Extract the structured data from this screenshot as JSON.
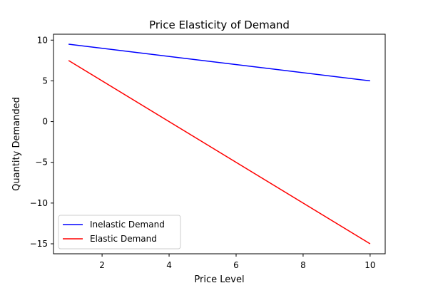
{
  "chart_data": {
    "type": "line",
    "title": "Price Elasticity of Demand",
    "xlabel": "Price Level",
    "ylabel": "Quantity Demanded",
    "xlim": [
      0.55,
      10.45
    ],
    "ylim": [
      -16.225,
      10.725
    ],
    "xticks": [
      2,
      4,
      6,
      8,
      10
    ],
    "xtick_labels": [
      "2",
      "4",
      "6",
      "8",
      "10"
    ],
    "yticks": [
      10,
      5,
      0,
      -5,
      -10,
      -15
    ],
    "ytick_labels": [
      "10",
      "5",
      "0",
      "−5",
      "−10",
      "−15"
    ],
    "grid": false,
    "legend_position": "lower-left",
    "series": [
      {
        "name": "Inelastic Demand",
        "color": "#0000ff",
        "x": [
          1,
          10
        ],
        "y": [
          9.5,
          5
        ]
      },
      {
        "name": "Elastic Demand",
        "color": "#ff0000",
        "x": [
          1,
          10
        ],
        "y": [
          7.5,
          -15
        ]
      }
    ]
  }
}
